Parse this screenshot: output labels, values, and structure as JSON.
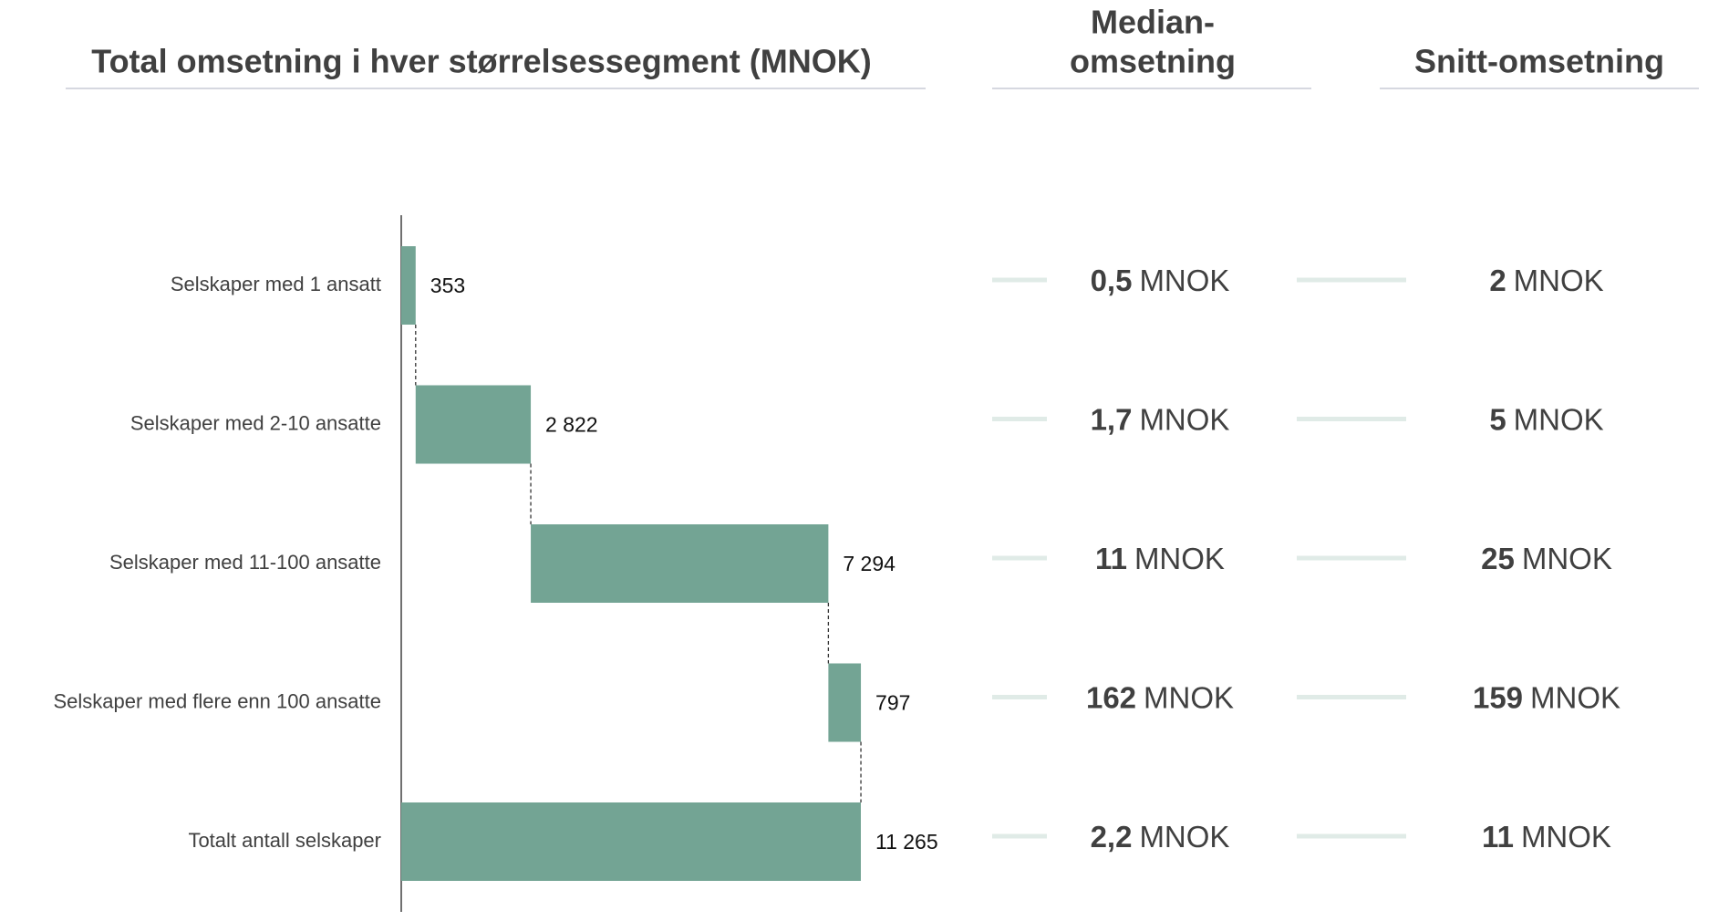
{
  "chart_data": {
    "type": "waterfall",
    "title": "Total omsetning i hver størrelsessegment (MNOK)",
    "categories": [
      "Selskaper med 1 ansatt",
      "Selskaper med 2-10 ansatte",
      "Selskaper med 11-100 ansatte",
      "Selskaper med flere enn 100 ansatte",
      "Totalt antall selskaper"
    ],
    "values": [
      353,
      2822,
      7294,
      797,
      11265
    ],
    "value_labels": [
      "353",
      "2 822",
      "7 294",
      "797",
      "11 265"
    ],
    "totals": [
      false,
      false,
      false,
      false,
      true
    ],
    "color": "#73a494",
    "xlim": [
      0,
      11265
    ],
    "side_columns": [
      {
        "title": [
          "Median-",
          "omsetning"
        ],
        "values": [
          "0,5",
          "1,7",
          "11",
          "162",
          "2,2"
        ],
        "unit": "MNOK"
      },
      {
        "title": [
          "Snitt-omsetning"
        ],
        "values": [
          "2",
          "5",
          "25",
          "159",
          "11"
        ],
        "unit": "MNOK"
      }
    ]
  }
}
